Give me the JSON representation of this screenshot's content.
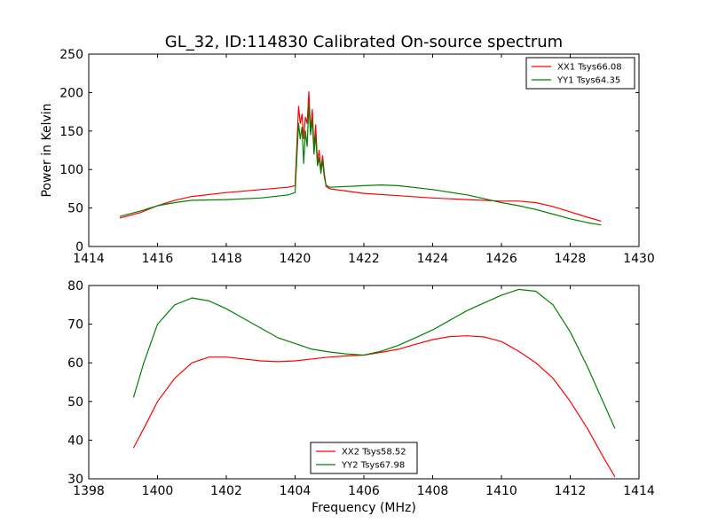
{
  "figure": {
    "title": "GL_32, ID:114830 Calibrated On-source spectrum",
    "xlabel": "Frequency (MHz)"
  },
  "chart_data": [
    {
      "type": "line",
      "title": "GL_32, ID:114830 Calibrated On-source spectrum",
      "xlabel": "",
      "ylabel": "Power in Kelvin",
      "xlim": [
        1414,
        1430
      ],
      "ylim": [
        0,
        250
      ],
      "xticks": [
        1414,
        1416,
        1418,
        1420,
        1422,
        1424,
        1426,
        1428,
        1430
      ],
      "yticks": [
        0,
        50,
        100,
        150,
        200,
        250
      ],
      "grid": false,
      "legend_position": "upper-right",
      "series": [
        {
          "name": "XX1 Tsys66.08",
          "color": "#ff0000",
          "x": [
            1414.9,
            1415.5,
            1416.0,
            1416.5,
            1417.0,
            1418.0,
            1419.0,
            1419.8,
            1420.0,
            1420.1,
            1420.15,
            1420.2,
            1420.25,
            1420.3,
            1420.35,
            1420.4,
            1420.45,
            1420.5,
            1420.55,
            1420.6,
            1420.65,
            1420.7,
            1420.75,
            1420.8,
            1420.85,
            1420.9,
            1421.0,
            1421.5,
            1422.0,
            1423.0,
            1424.0,
            1425.0,
            1426.0,
            1426.5,
            1427.0,
            1427.5,
            1428.0,
            1428.5,
            1428.9
          ],
          "values": [
            37,
            44,
            53,
            60,
            65,
            70,
            74,
            77,
            79,
            182,
            160,
            172,
            140,
            168,
            160,
            201,
            150,
            178,
            128,
            158,
            110,
            125,
            100,
            118,
            95,
            78,
            75,
            72,
            69,
            66,
            63,
            61,
            59,
            59,
            57,
            52,
            45,
            38,
            33
          ]
        },
        {
          "name": "YY1 Tsys64.35",
          "color": "#008000",
          "x": [
            1414.9,
            1415.5,
            1416.0,
            1416.5,
            1417.0,
            1418.0,
            1419.0,
            1419.8,
            1420.0,
            1420.1,
            1420.15,
            1420.2,
            1420.25,
            1420.3,
            1420.35,
            1420.4,
            1420.45,
            1420.5,
            1420.55,
            1420.6,
            1420.65,
            1420.7,
            1420.75,
            1420.8,
            1420.85,
            1420.9,
            1421.0,
            1421.5,
            1422.0,
            1422.5,
            1423.0,
            1424.0,
            1425.0,
            1426.0,
            1426.5,
            1427.0,
            1427.5,
            1428.0,
            1428.5,
            1428.9
          ],
          "values": [
            39,
            46,
            53,
            57,
            60,
            61,
            63,
            67,
            70,
            160,
            140,
            155,
            108,
            150,
            130,
            185,
            145,
            165,
            120,
            145,
            105,
            115,
            95,
            112,
            90,
            80,
            77,
            78,
            79,
            80,
            79,
            74,
            67,
            57,
            53,
            48,
            42,
            36,
            31,
            28
          ]
        }
      ]
    },
    {
      "type": "line",
      "title": "",
      "xlabel": "Frequency (MHz)",
      "ylabel": "",
      "xlim": [
        1398,
        1414
      ],
      "ylim": [
        30,
        80
      ],
      "xticks": [
        1398,
        1400,
        1402,
        1404,
        1406,
        1408,
        1410,
        1412,
        1414
      ],
      "yticks": [
        30,
        40,
        50,
        60,
        70,
        80
      ],
      "grid": false,
      "legend_position": "lower-center",
      "series": [
        {
          "name": "XX2 Tsys58.52",
          "color": "#ff0000",
          "x": [
            1399.3,
            1399.6,
            1400.0,
            1400.5,
            1401.0,
            1401.5,
            1402.0,
            1402.5,
            1403.0,
            1403.5,
            1404.0,
            1404.5,
            1405.0,
            1405.5,
            1406.0,
            1406.5,
            1407.0,
            1407.5,
            1408.0,
            1408.5,
            1409.0,
            1409.5,
            1410.0,
            1410.5,
            1411.0,
            1411.5,
            1412.0,
            1412.5,
            1413.0,
            1413.3
          ],
          "values": [
            38,
            43,
            50,
            56,
            60,
            61.5,
            61.5,
            61,
            60.5,
            60.3,
            60.5,
            61,
            61.5,
            61.8,
            62,
            62.7,
            63.5,
            64.8,
            66,
            66.8,
            67,
            66.7,
            65.5,
            63,
            60,
            56,
            50,
            43,
            35,
            30.5
          ]
        },
        {
          "name": "YY2 Tsys67.98",
          "color": "#008000",
          "x": [
            1399.3,
            1399.6,
            1400.0,
            1400.5,
            1401.0,
            1401.5,
            1402.0,
            1402.5,
            1403.0,
            1403.5,
            1404.0,
            1404.5,
            1405.0,
            1405.5,
            1406.0,
            1406.5,
            1407.0,
            1407.5,
            1408.0,
            1408.5,
            1409.0,
            1409.5,
            1410.0,
            1410.5,
            1411.0,
            1411.5,
            1412.0,
            1412.5,
            1413.0,
            1413.3
          ],
          "values": [
            51,
            60,
            70,
            75,
            76.8,
            76,
            74,
            71.5,
            69,
            66.5,
            65,
            63.5,
            62.8,
            62.3,
            62,
            63,
            64.5,
            66.5,
            68.5,
            71,
            73.5,
            75.5,
            77.5,
            79,
            78.5,
            75,
            68,
            59,
            49,
            43
          ]
        }
      ]
    }
  ]
}
